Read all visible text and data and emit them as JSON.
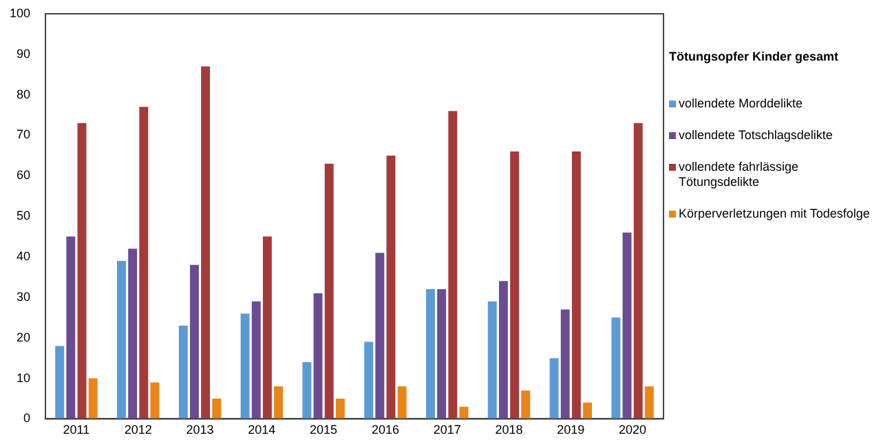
{
  "chart_data": {
    "type": "bar",
    "legend_title": "Tötungsopfer Kinder gesamt",
    "categories": [
      "2011",
      "2012",
      "2013",
      "2014",
      "2015",
      "2016",
      "2017",
      "2018",
      "2019",
      "2020"
    ],
    "series": [
      {
        "name": "vollendete Morddelikte",
        "color": "#5b9bd5",
        "values": [
          18,
          39,
          23,
          26,
          14,
          19,
          32,
          29,
          15,
          25
        ]
      },
      {
        "name": "vollendete Totschlagsdelikte",
        "color": "#6a4c93",
        "values": [
          45,
          42,
          38,
          29,
          31,
          41,
          32,
          34,
          27,
          46
        ]
      },
      {
        "name": "vollendete fahrlässige Tötungsdelikte",
        "color": "#a33b3b",
        "values": [
          73,
          77,
          87,
          45,
          63,
          65,
          76,
          66,
          66,
          73
        ]
      },
      {
        "name": "Körperverletzungen mit Todesfolge",
        "color": "#e8861a",
        "values": [
          10,
          9,
          5,
          8,
          5,
          8,
          3,
          7,
          4,
          8
        ]
      }
    ],
    "ylim": [
      0,
      100
    ],
    "yticks": [
      0,
      10,
      20,
      30,
      40,
      50,
      60,
      70,
      80,
      90,
      100
    ],
    "grid": false,
    "legend": "right"
  }
}
